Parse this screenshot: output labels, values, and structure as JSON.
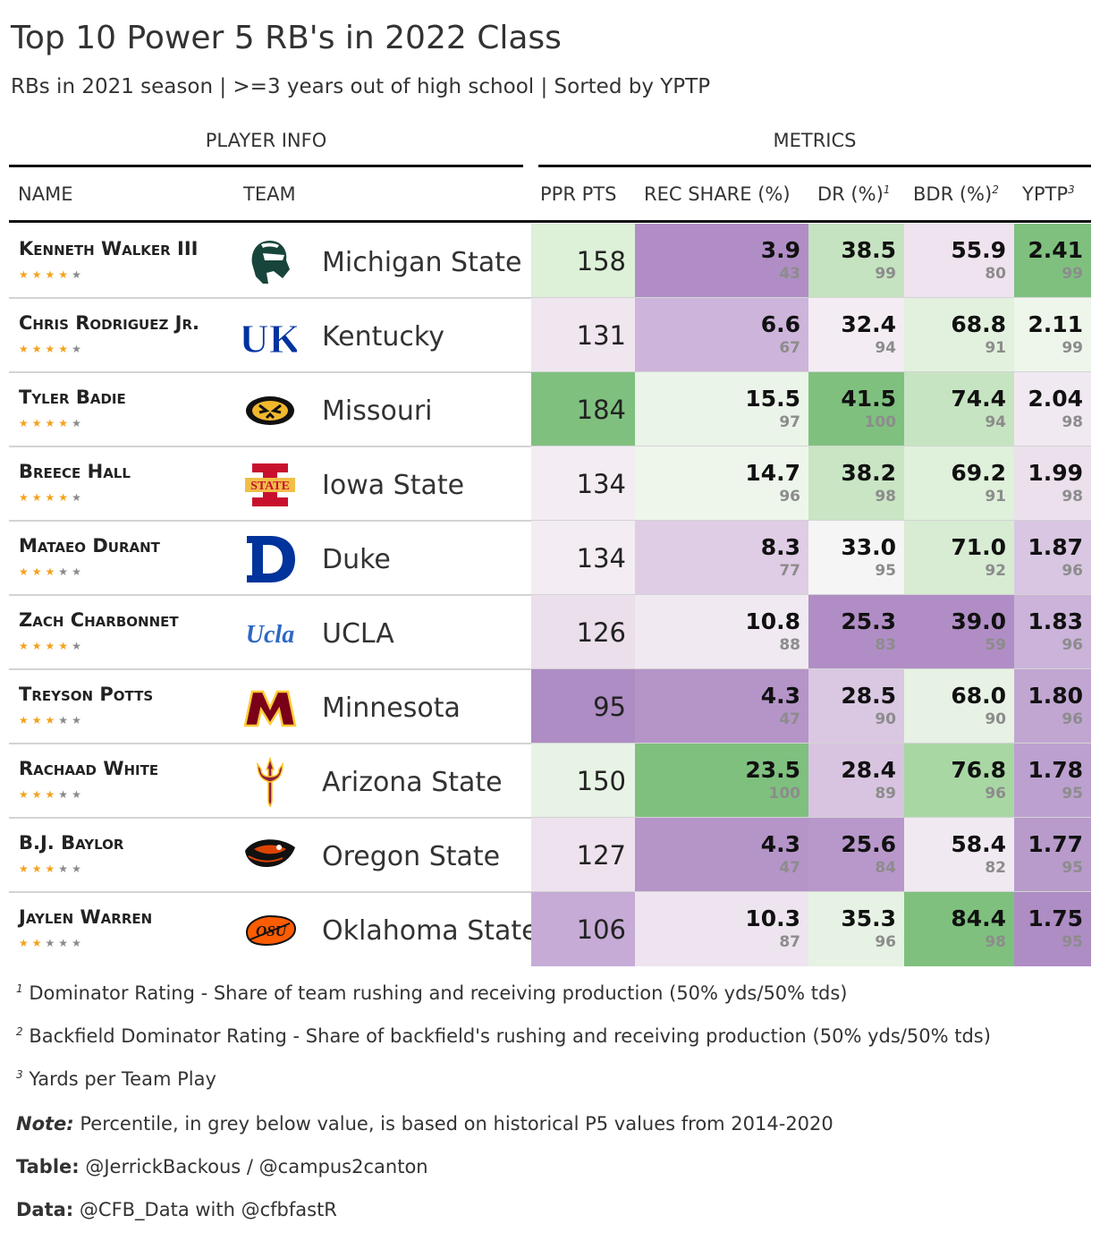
{
  "title": "Top 10 Power 5 RB's in 2022 Class",
  "subtitle": "RBs in 2021 season | >=3 years out of high school | Sorted by YPTP",
  "spanners": {
    "player_info": "PLAYER INFO",
    "metrics": "METRICS"
  },
  "columns": {
    "name": "NAME",
    "team": "TEAM",
    "ppr": "PPR PTS",
    "rec": "REC SHARE (%)",
    "dr": "DR (%)",
    "dr_note": "1",
    "bdr": "BDR (%)",
    "bdr_note": "2",
    "yptp": "YPTP",
    "yptp_note": "3"
  },
  "chart_data": {
    "type": "table",
    "title": "Top 10 Power 5 RB's in 2022 Class",
    "color_scale": {
      "low": "#ae8cc4",
      "mid": "#f5f5f5",
      "high": "#7fc07f"
    },
    "rows": [
      {
        "name": "Kenneth Walker III",
        "stars": 4,
        "team": "Michigan State",
        "logo": "spartan-helmet-icon",
        "ppr": {
          "value": "158",
          "color": "#ddf0d8"
        },
        "rec": {
          "value": "3.9",
          "pct": "43",
          "color": "#b08ec5"
        },
        "dr": {
          "value": "38.5",
          "pct": "99",
          "color": "#c5e3c0"
        },
        "bdr": {
          "value": "55.9",
          "pct": "80",
          "color": "#efe3ef"
        },
        "yptp": {
          "value": "2.41",
          "pct": "99",
          "color": "#7fc07f"
        }
      },
      {
        "name": "Chris Rodriguez Jr.",
        "stars": 4,
        "team": "Kentucky",
        "logo": "uk-logo-icon",
        "ppr": {
          "value": "131",
          "color": "#f0e6f0"
        },
        "rec": {
          "value": "6.6",
          "pct": "67",
          "color": "#cdb4da"
        },
        "dr": {
          "value": "32.4",
          "pct": "94",
          "color": "#f3edf3"
        },
        "bdr": {
          "value": "68.8",
          "pct": "91",
          "color": "#e2f1de"
        },
        "yptp": {
          "value": "2.11",
          "pct": "99",
          "color": "#eef6ec"
        }
      },
      {
        "name": "Tyler Badie",
        "stars": 4,
        "team": "Missouri",
        "logo": "tiger-head-icon",
        "ppr": {
          "value": "184",
          "color": "#7fc07f"
        },
        "rec": {
          "value": "15.5",
          "pct": "97",
          "color": "#ebf4e9"
        },
        "dr": {
          "value": "41.5",
          "pct": "100",
          "color": "#7fc07f"
        },
        "bdr": {
          "value": "74.4",
          "pct": "94",
          "color": "#c6e4c1"
        },
        "yptp": {
          "value": "2.04",
          "pct": "98",
          "color": "#f1e9f1"
        }
      },
      {
        "name": "Breece Hall",
        "stars": 4,
        "team": "Iowa State",
        "logo": "isu-state-icon",
        "ppr": {
          "value": "134",
          "color": "#f3edf3"
        },
        "rec": {
          "value": "14.7",
          "pct": "96",
          "color": "#eef6ec"
        },
        "dr": {
          "value": "38.2",
          "pct": "98",
          "color": "#c9e5c4"
        },
        "bdr": {
          "value": "69.2",
          "pct": "91",
          "color": "#dff0db"
        },
        "yptp": {
          "value": "1.99",
          "pct": "98",
          "color": "#ece0ed"
        }
      },
      {
        "name": "Mataeo Durant",
        "stars": 3,
        "team": "Duke",
        "logo": "duke-d-icon",
        "ppr": {
          "value": "134",
          "color": "#f3edf3"
        },
        "rec": {
          "value": "8.3",
          "pct": "77",
          "color": "#dfcce5"
        },
        "dr": {
          "value": "33.0",
          "pct": "95",
          "color": "#f5f5f5"
        },
        "bdr": {
          "value": "71.0",
          "pct": "92",
          "color": "#d7ecd3"
        },
        "yptp": {
          "value": "1.87",
          "pct": "96",
          "color": "#d9c6e2"
        }
      },
      {
        "name": "Zach Charbonnet",
        "stars": 4,
        "team": "UCLA",
        "logo": "ucla-script-icon",
        "ppr": {
          "value": "126",
          "color": "#ebdfec"
        },
        "rec": {
          "value": "10.8",
          "pct": "88",
          "color": "#f1e9f1"
        },
        "dr": {
          "value": "25.3",
          "pct": "83",
          "color": "#b08ec5"
        },
        "bdr": {
          "value": "39.0",
          "pct": "59",
          "color": "#b08ec5"
        },
        "yptp": {
          "value": "1.83",
          "pct": "96",
          "color": "#cbb3d9"
        }
      },
      {
        "name": "Treyson Potts",
        "stars": 3,
        "team": "Minnesota",
        "logo": "minnesota-m-icon",
        "ppr": {
          "value": "95",
          "color": "#ae8cc4"
        },
        "rec": {
          "value": "4.3",
          "pct": "47",
          "color": "#b594c8"
        },
        "dr": {
          "value": "28.5",
          "pct": "90",
          "color": "#dac7e2"
        },
        "bdr": {
          "value": "68.0",
          "pct": "90",
          "color": "#e7f2e4"
        },
        "yptp": {
          "value": "1.80",
          "pct": "96",
          "color": "#c1a6d2"
        }
      },
      {
        "name": "Rachaad White",
        "stars": 3,
        "team": "Arizona State",
        "logo": "pitchfork-icon",
        "ppr": {
          "value": "150",
          "color": "#e7f3e4"
        },
        "rec": {
          "value": "23.5",
          "pct": "100",
          "color": "#7fc07f"
        },
        "dr": {
          "value": "28.4",
          "pct": "89",
          "color": "#d8c4e0"
        },
        "bdr": {
          "value": "76.8",
          "pct": "96",
          "color": "#a9d7a4"
        },
        "yptp": {
          "value": "1.78",
          "pct": "95",
          "color": "#bca0cf"
        }
      },
      {
        "name": "B.J. Baylor",
        "stars": 3,
        "team": "Oregon State",
        "logo": "beaver-head-icon",
        "ppr": {
          "value": "127",
          "color": "#ede2ee"
        },
        "rec": {
          "value": "4.3",
          "pct": "47",
          "color": "#b594c8"
        },
        "dr": {
          "value": "25.6",
          "pct": "84",
          "color": "#b898cb"
        },
        "bdr": {
          "value": "58.4",
          "pct": "82",
          "color": "#f1e9f1"
        },
        "yptp": {
          "value": "1.77",
          "pct": "95",
          "color": "#b89bcb"
        }
      },
      {
        "name": "Jaylen Warren",
        "stars": 2,
        "team": "Oklahoma State",
        "logo": "osu-brand-icon",
        "ppr": {
          "value": "106",
          "color": "#c6abd6"
        },
        "rec": {
          "value": "10.3",
          "pct": "87",
          "color": "#eee4ef"
        },
        "dr": {
          "value": "35.3",
          "pct": "96",
          "color": "#e6f2e3"
        },
        "bdr": {
          "value": "84.4",
          "pct": "98",
          "color": "#7fc07f"
        },
        "yptp": {
          "value": "1.75",
          "pct": "95",
          "color": "#ae8cc4"
        }
      }
    ]
  },
  "footnotes": {
    "n1_mark": "1",
    "n1": "Dominator Rating - Share of team rushing and receiving production (50% yds/50% tds)",
    "n2_mark": "2",
    "n2": "Backfield Dominator Rating - Share of backfield's rushing and receiving production (50% yds/50% tds)",
    "n3_mark": "3",
    "n3": "Yards per Team Play",
    "note_label": "Note:",
    "note": "Percentile, in grey below value, is based on historical P5 values from 2014-2020",
    "table_label": "Table:",
    "table": "@JerrickBackous / @campus2canton",
    "data_label": "Data:",
    "data": "@CFB_Data with @cfbfastR"
  }
}
